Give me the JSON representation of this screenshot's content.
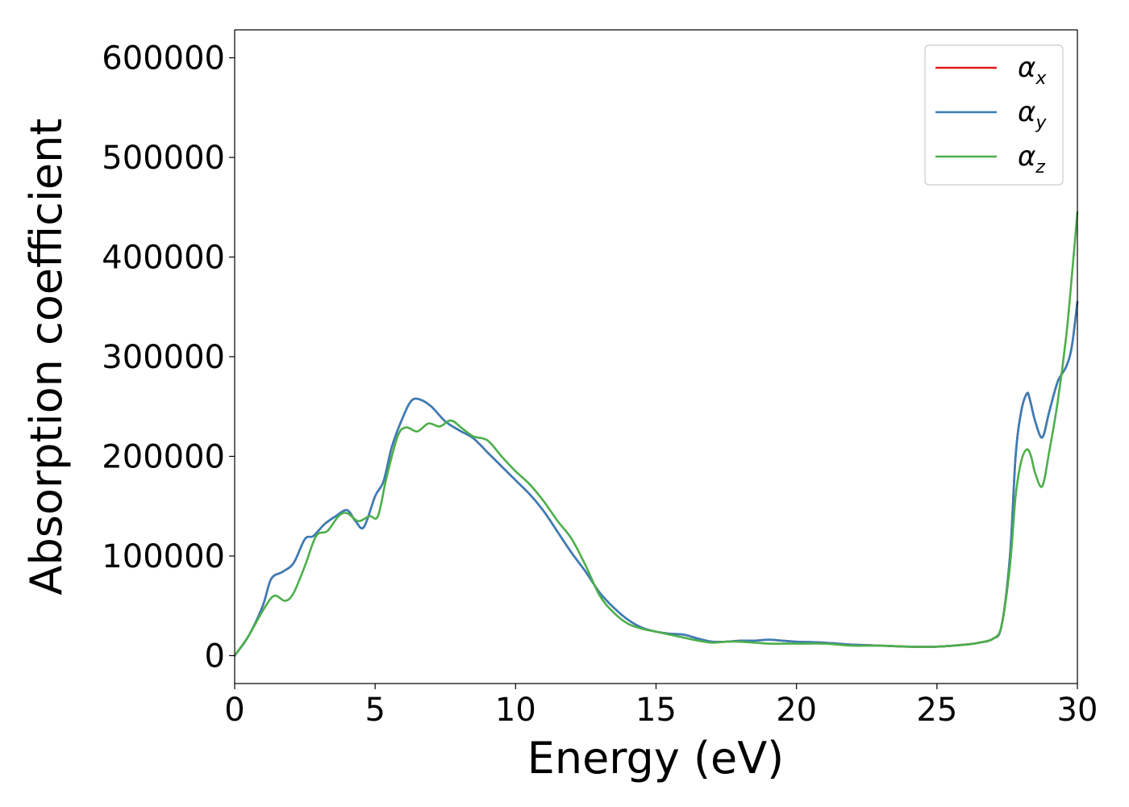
{
  "chart_data": {
    "type": "line",
    "title": "",
    "xlabel": "Energy (eV)",
    "ylabel": "Absorption coefficient",
    "xlim": [
      0,
      30
    ],
    "ylim": [
      -28000,
      628000
    ],
    "xticks": [
      0,
      5,
      10,
      15,
      20,
      25,
      30
    ],
    "xtick_labels": [
      "0",
      "5",
      "10",
      "15",
      "20",
      "25",
      "30"
    ],
    "yticks": [
      0,
      100000,
      200000,
      300000,
      400000,
      500000,
      600000
    ],
    "ytick_labels": [
      "0",
      "100000",
      "200000",
      "300000",
      "400000",
      "500000",
      "600000"
    ],
    "grid": false,
    "legend_position": "top-right",
    "series": [
      {
        "name": "x",
        "legend_symbol": "α",
        "color": "#e41a1c",
        "x": [
          0,
          0.5,
          1.0,
          1.3,
          1.7,
          2.1,
          2.5,
          2.8,
          3.2,
          3.6,
          4.0,
          4.3,
          4.6,
          5.0,
          5.3,
          5.6,
          6.0,
          6.3,
          6.6,
          7.0,
          7.5,
          8.0,
          8.5,
          9.0,
          9.5,
          10.0,
          10.5,
          11.0,
          11.5,
          12.0,
          12.5,
          13.0,
          13.5,
          14.0,
          14.5,
          15.0,
          15.5,
          16.0,
          16.5,
          17.0,
          17.5,
          18.0,
          18.5,
          19.0,
          19.5,
          20.0,
          21.0,
          22.0,
          23.0,
          24.0,
          25.0,
          26.0,
          26.5,
          27.0,
          27.3,
          27.6,
          27.8,
          28.0,
          28.2,
          28.3,
          28.5,
          28.75,
          29.0,
          29.3,
          29.6,
          29.8,
          30.0
        ],
        "y": [
          0,
          20000,
          50000,
          77000,
          84000,
          93000,
          117000,
          120000,
          132000,
          140000,
          146000,
          135000,
          129000,
          160000,
          175000,
          210000,
          240000,
          256000,
          257000,
          250000,
          235000,
          226000,
          218000,
          204000,
          190000,
          176000,
          162000,
          145000,
          124000,
          103000,
          84000,
          63000,
          48000,
          36000,
          28000,
          24000,
          22000,
          21000,
          17000,
          14000,
          14000,
          15000,
          15000,
          16000,
          15000,
          14000,
          13000,
          11000,
          10000,
          9000,
          9000,
          11000,
          13000,
          17000,
          30000,
          100000,
          200000,
          245000,
          263000,
          258000,
          235000,
          219000,
          245000,
          275000,
          290000,
          310000,
          355000
        ]
      },
      {
        "name": "y",
        "legend_symbol": "α",
        "color": "#377eb8",
        "x": [
          0,
          0.5,
          1.0,
          1.3,
          1.7,
          2.1,
          2.5,
          2.8,
          3.2,
          3.6,
          4.0,
          4.3,
          4.6,
          5.0,
          5.3,
          5.6,
          6.0,
          6.3,
          6.6,
          7.0,
          7.5,
          8.0,
          8.5,
          9.0,
          9.5,
          10.0,
          10.5,
          11.0,
          11.5,
          12.0,
          12.5,
          13.0,
          13.5,
          14.0,
          14.5,
          15.0,
          15.5,
          16.0,
          16.5,
          17.0,
          17.5,
          18.0,
          18.5,
          19.0,
          19.5,
          20.0,
          21.0,
          22.0,
          23.0,
          24.0,
          25.0,
          26.0,
          26.5,
          27.0,
          27.3,
          27.6,
          27.8,
          28.0,
          28.2,
          28.3,
          28.5,
          28.75,
          29.0,
          29.3,
          29.6,
          29.8,
          30.0
        ],
        "y": [
          0,
          20000,
          50000,
          77000,
          84000,
          93000,
          117000,
          120000,
          132000,
          140000,
          146000,
          135000,
          129000,
          160000,
          175000,
          210000,
          240000,
          256000,
          257000,
          250000,
          235000,
          226000,
          218000,
          204000,
          190000,
          176000,
          162000,
          145000,
          124000,
          103000,
          84000,
          63000,
          48000,
          36000,
          28000,
          24000,
          22000,
          21000,
          17000,
          14000,
          14000,
          15000,
          15000,
          16000,
          15000,
          14000,
          13000,
          11000,
          10000,
          9000,
          9000,
          11000,
          13000,
          17000,
          30000,
          100000,
          200000,
          245000,
          263000,
          258000,
          235000,
          219000,
          245000,
          275000,
          290000,
          310000,
          355000
        ]
      },
      {
        "name": "z",
        "legend_symbol": "α",
        "color": "#4daf4a",
        "x": [
          0,
          0.5,
          1.0,
          1.4,
          1.8,
          2.1,
          2.5,
          2.9,
          3.3,
          3.7,
          4.0,
          4.4,
          4.8,
          5.1,
          5.4,
          5.8,
          6.1,
          6.5,
          6.9,
          7.3,
          7.7,
          8.1,
          8.5,
          9.0,
          9.5,
          10.0,
          10.5,
          11.0,
          11.5,
          12.0,
          12.5,
          13.0,
          13.5,
          14.0,
          14.5,
          15.0,
          15.5,
          16.0,
          16.5,
          17.0,
          17.5,
          18.0,
          18.5,
          19.0,
          19.5,
          20.0,
          21.0,
          22.0,
          23.0,
          24.0,
          25.0,
          26.0,
          26.5,
          27.0,
          27.3,
          27.6,
          27.8,
          28.0,
          28.2,
          28.35,
          28.5,
          28.75,
          29.0,
          29.3,
          29.6,
          29.8,
          30.0
        ],
        "y": [
          0,
          20000,
          45000,
          60000,
          55000,
          63000,
          90000,
          120000,
          125000,
          140000,
          143000,
          135000,
          140000,
          140000,
          178000,
          220000,
          229000,
          225000,
          233000,
          230000,
          236000,
          228000,
          220000,
          216000,
          200000,
          185000,
          172000,
          155000,
          135000,
          117000,
          90000,
          60000,
          43000,
          32000,
          27000,
          24000,
          21000,
          18000,
          15000,
          13000,
          14000,
          14000,
          13000,
          12000,
          12000,
          12000,
          12000,
          10000,
          10000,
          9000,
          9000,
          11000,
          13000,
          17000,
          30000,
          90000,
          160000,
          195000,
          207000,
          200000,
          183000,
          170000,
          205000,
          255000,
          320000,
          380000,
          445000
        ]
      }
    ]
  }
}
